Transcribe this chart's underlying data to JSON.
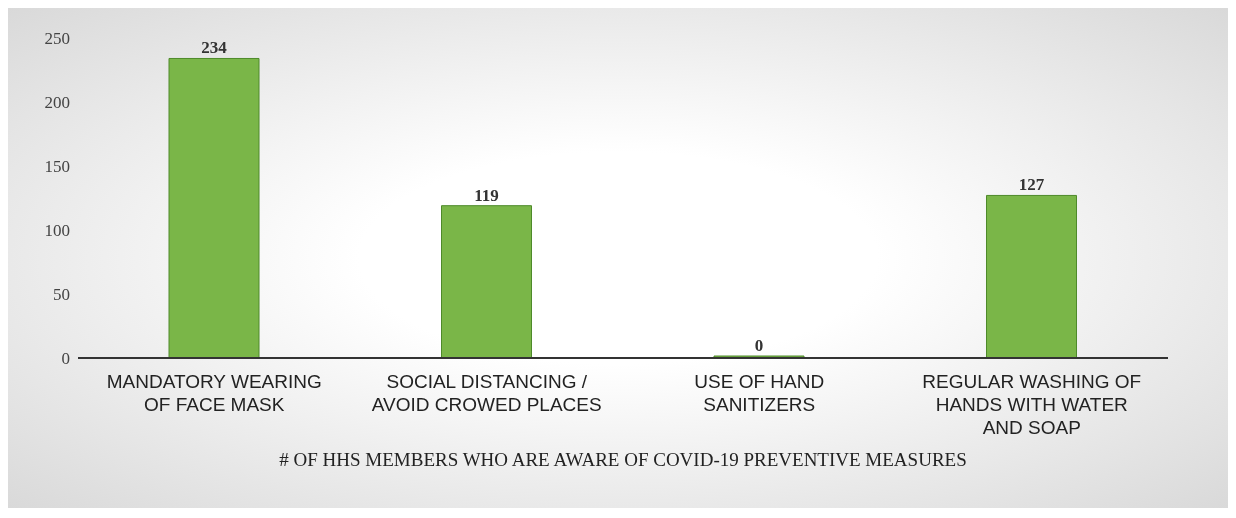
{
  "chart_data": {
    "type": "bar",
    "categories": [
      "MANDATORY WEARING OF FACE MASK",
      "SOCIAL DISTANCING / AVOID CROWED PLACES",
      "USE OF HAND SANITIZERS",
      "REGULAR WASHING OF HANDS WITH WATER AND SOAP"
    ],
    "values": [
      234,
      119,
      0,
      127
    ],
    "color": "#7ab648",
    "data_labels": true,
    "ylim": [
      0,
      250
    ],
    "yticks": [
      0,
      50,
      100,
      150,
      200,
      250
    ],
    "grid": false,
    "legend": false,
    "xlabel": "# OF HHS MEMBERS WHO ARE AWARE OF COVID-19 PREVENTIVE MEASURES"
  }
}
